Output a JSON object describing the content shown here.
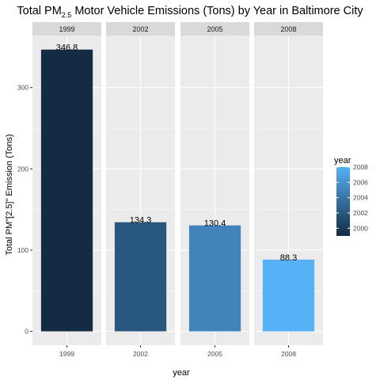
{
  "chart_data": {
    "type": "bar",
    "title": {
      "prefix": "Total PM",
      "subscript": "2.5",
      "suffix": " Motor Vehicle Emissions (Tons) by Year in Baltimore City"
    },
    "xlabel": "year",
    "ylabel": "Total PM\"[2.5]\" Emission (Tons)",
    "facets": [
      "1999",
      "2002",
      "2005",
      "2008"
    ],
    "categories": [
      "1999",
      "2002",
      "2005",
      "2008"
    ],
    "values": [
      346.8,
      134.3,
      130.4,
      88.3
    ],
    "value_labels": [
      "346.8",
      "134.3",
      "130.4",
      "88.3"
    ],
    "ylim": [
      -17,
      364
    ],
    "yticks": [
      0,
      100,
      200,
      300
    ],
    "ytick_labels": [
      "0",
      "100",
      "200",
      "300"
    ],
    "grid": true,
    "legend": {
      "title": "year",
      "placement": "right",
      "range": [
        1999,
        2008
      ],
      "ticks": [
        2000,
        2002,
        2004,
        2006,
        2008
      ],
      "tick_labels": [
        "2000",
        "2002",
        "2004",
        "2006",
        "2008"
      ],
      "color_low": "#132b43",
      "color_high": "#56b1f7"
    },
    "colors": {
      "panel_bg": "#ebebeb",
      "strip_bg": "#d9d9d9",
      "grid": "#ffffff"
    }
  }
}
